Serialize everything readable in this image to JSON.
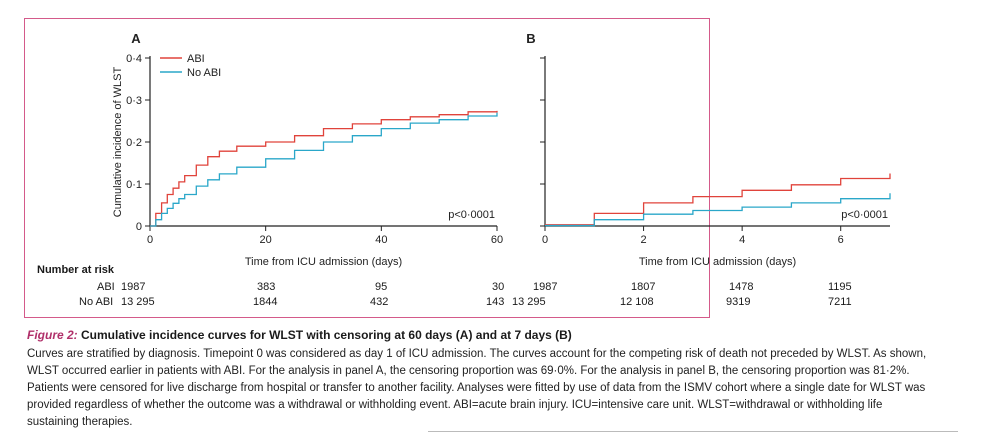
{
  "colors": {
    "abi": "#e0433b",
    "no_abi": "#2aa7c9",
    "frame": "#d45a8a",
    "axis": "#222222"
  },
  "chart_data": [
    {
      "panel": "A",
      "type": "line",
      "xlabel": "Time from ICU admission (days)",
      "ylabel": "Cumulative incidence of WLST",
      "xlim": [
        0,
        60
      ],
      "ylim": [
        0,
        0.4
      ],
      "xticks": [
        0,
        20,
        40,
        60
      ],
      "yticks": [
        0,
        0.1,
        0.2,
        0.3,
        0.4
      ],
      "xtick_labels": [
        "0",
        "20",
        "40",
        "60"
      ],
      "ytick_labels": [
        "0",
        "0·1",
        "0·2",
        "0·3",
        "0·4"
      ],
      "legend": {
        "position": "top-left",
        "entries": [
          "ABI",
          "No ABI"
        ]
      },
      "annotation": "p<0·0001",
      "series": [
        {
          "name": "ABI",
          "x": [
            0,
            1,
            2,
            3,
            4,
            5,
            6,
            8,
            10,
            12,
            15,
            20,
            25,
            30,
            35,
            40,
            45,
            50,
            55,
            60
          ],
          "y": [
            0,
            0.03,
            0.055,
            0.075,
            0.09,
            0.105,
            0.12,
            0.145,
            0.165,
            0.178,
            0.19,
            0.2,
            0.215,
            0.232,
            0.243,
            0.253,
            0.26,
            0.265,
            0.272,
            0.274
          ]
        },
        {
          "name": "No ABI",
          "x": [
            0,
            1,
            2,
            3,
            4,
            5,
            6,
            8,
            10,
            12,
            15,
            20,
            25,
            30,
            35,
            40,
            45,
            50,
            55,
            60
          ],
          "y": [
            0,
            0.015,
            0.03,
            0.042,
            0.054,
            0.065,
            0.075,
            0.095,
            0.11,
            0.124,
            0.14,
            0.16,
            0.18,
            0.2,
            0.215,
            0.232,
            0.245,
            0.253,
            0.262,
            0.27
          ]
        }
      ]
    },
    {
      "panel": "B",
      "type": "line",
      "xlabel": "Time from ICU admission (days)",
      "xlim": [
        0,
        7
      ],
      "ylim": [
        0,
        0.4
      ],
      "xticks": [
        0,
        2,
        4,
        6
      ],
      "xtick_labels": [
        "0",
        "2",
        "4",
        "6"
      ],
      "annotation": "p<0·0001",
      "series": [
        {
          "name": "ABI",
          "x": [
            0,
            1,
            2,
            3,
            4,
            5,
            6,
            7
          ],
          "y": [
            0.003,
            0.03,
            0.055,
            0.07,
            0.085,
            0.098,
            0.113,
            0.125
          ]
        },
        {
          "name": "No ABI",
          "x": [
            0,
            1,
            2,
            3,
            4,
            5,
            6,
            7
          ],
          "y": [
            0.001,
            0.015,
            0.028,
            0.037,
            0.045,
            0.055,
            0.065,
            0.078
          ]
        }
      ]
    }
  ],
  "risk_table": {
    "title": "Number at risk",
    "row_labels": [
      "ABI",
      "No ABI"
    ],
    "panel_a": {
      "abi": [
        "1987",
        "383",
        "95",
        "30"
      ],
      "no_abi": [
        "13 295",
        "1844",
        "432",
        "143"
      ]
    },
    "panel_b": {
      "abi": [
        "1987",
        "1807",
        "1478",
        "1195"
      ],
      "no_abi": [
        "13 295",
        "12 108",
        "9319",
        "7211"
      ]
    }
  },
  "caption": {
    "label": "Figure 2:",
    "title": "Cumulative incidence curves for WLST with censoring at 60 days (A) and at 7 days (B)",
    "body": "Curves are stratified by diagnosis. Timepoint 0 was considered as day 1 of ICU admission. The curves account for the competing risk of death not preceded by WLST. As shown, WLST occurred earlier in patients with ABI. For the analysis in panel A, the censoring proportion was 69·0%. For the analysis in panel B, the censoring proportion was 81·2%. Patients were censored for live discharge from hospital or transfer to another facility. Analyses were fitted by use of data from the ISMV cohort where a single date for WLST was provided regardless of whether the outcome was a withdrawal or withholding event. ABI=acute brain injury. ICU=intensive care unit. WLST=withdrawal or withholding life sustaining therapies."
  }
}
